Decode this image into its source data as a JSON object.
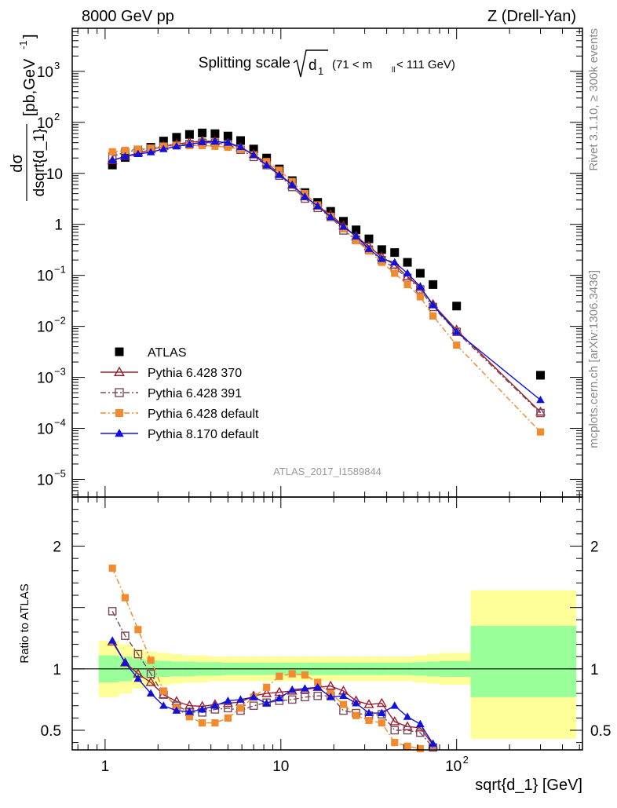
{
  "header": {
    "left": "8000 GeV pp",
    "right": "Z (Drell-Yan)"
  },
  "side_labels": {
    "rivet": "Rivet 3.1.10, ≥ 300k events",
    "mcplots": "mcplots.cern.ch [arXiv:1306.3436]"
  },
  "chart_data": [
    {
      "type": "scatter",
      "title_parts": {
        "main": "Splitting scale",
        "sqrt_arg": "d",
        "sqrt_sub": "1",
        "range_open": "(71 < m",
        "range_sub": "ll",
        "range_close": " < 111 GeV)"
      },
      "ylabel_parts": {
        "num": "dσ",
        "den": "dsqrt{d_1}",
        "units": "[pb,GeV",
        "units_exp": "-1",
        "units_close": "]"
      },
      "xscale": "log",
      "yscale": "log",
      "xlim": [
        0.65,
        520
      ],
      "ylim": [
        4.5e-06,
        7000
      ],
      "yticks": [
        {
          "value": 1e-05,
          "base": "10",
          "exp": "−5"
        },
        {
          "value": 0.0001,
          "base": "10",
          "exp": "−4"
        },
        {
          "value": 0.001,
          "base": "10",
          "exp": "−3"
        },
        {
          "value": 0.01,
          "base": "10",
          "exp": "−2"
        },
        {
          "value": 0.1,
          "base": "10",
          "exp": "−1"
        },
        {
          "value": 1,
          "base": "1",
          "exp": ""
        },
        {
          "value": 10,
          "base": "10",
          "exp": ""
        },
        {
          "value": 100,
          "base": "10",
          "exp": "2"
        },
        {
          "value": 1000,
          "base": "10",
          "exp": "3"
        }
      ],
      "watermark": "ATLAS_2017_I1589844",
      "legend_position": "bottom-left",
      "x": [
        1.1,
        1.3,
        1.54,
        1.82,
        2.15,
        2.55,
        3.02,
        3.57,
        4.22,
        5.0,
        5.9,
        7.0,
        8.3,
        9.8,
        11.6,
        13.7,
        16.2,
        19.2,
        22.7,
        26.8,
        31.7,
        37.5,
        44.4,
        52.5,
        62.1,
        73.4,
        100,
        300
      ],
      "series": [
        {
          "name": "ATLAS",
          "color": "#000000",
          "marker": "square",
          "line": "none",
          "values": [
            14.6,
            20.5,
            26,
            32.5,
            43,
            51,
            58,
            62,
            60,
            54,
            44,
            30,
            20,
            12.2,
            7.2,
            4.2,
            2.7,
            1.8,
            1.15,
            0.78,
            0.52,
            0.32,
            0.28,
            0.18,
            0.11,
            0.066,
            0.025,
            0.0011
          ]
        },
        {
          "name": "Pythia 6.428 370",
          "color": "#9a1e2c",
          "marker": "triangle-open",
          "line": "solid",
          "values": [
            17.8,
            21.5,
            25,
            29,
            34,
            37.5,
            40.5,
            43,
            42.5,
            39,
            32,
            23.5,
            16,
            9.8,
            5.9,
            3.5,
            2.3,
            1.55,
            0.94,
            0.58,
            0.37,
            0.23,
            0.16,
            0.095,
            0.058,
            0.027,
            0.0085,
            0.00021
          ]
        },
        {
          "name": "Pythia 6.428 391",
          "color": "#7a4a5a",
          "marker": "square-open",
          "line": "dashdot",
          "values": [
            21.5,
            26,
            29,
            31,
            34,
            35.5,
            37.5,
            40,
            40,
            36.5,
            29,
            21,
            14.5,
            9,
            5.4,
            3.2,
            2.1,
            1.4,
            0.76,
            0.5,
            0.32,
            0.2,
            0.14,
            0.09,
            0.053,
            0.024,
            0.0078,
            0.0002
          ]
        },
        {
          "name": "Pythia 6.428 default",
          "color": "#f28a30",
          "marker": "square-filled",
          "line": "dashdot",
          "values": [
            26.5,
            28.3,
            29.6,
            30.7,
            33.5,
            35,
            35,
            35,
            34,
            32.5,
            30,
            23,
            17,
            11.5,
            6.9,
            4.0,
            2.4,
            1.43,
            0.82,
            0.48,
            0.3,
            0.18,
            0.11,
            0.066,
            0.038,
            0.016,
            0.0043,
            8.5e-05
          ]
        },
        {
          "name": "Pythia 8.170 default",
          "color": "#1111dd",
          "marker": "triangle-filled",
          "line": "solid",
          "values": [
            18,
            21.5,
            24,
            26,
            30,
            34,
            37,
            41,
            42,
            40,
            33,
            23,
            14.5,
            9.3,
            6,
            3.5,
            2.3,
            1.4,
            0.9,
            0.58,
            0.33,
            0.21,
            0.18,
            0.11,
            0.06,
            0.026,
            0.0078,
            0.00036
          ]
        }
      ]
    },
    {
      "type": "scatter",
      "ylabel": "Ratio to ATLAS",
      "xlabel": "sqrt{d_1} [GeV]",
      "xscale": "log",
      "yscale": "linear",
      "xlim": [
        0.65,
        520
      ],
      "ylim": [
        0.34,
        2.4
      ],
      "reference_line": 1,
      "yticks": [
        0.5,
        1,
        2
      ],
      "ytick_labels": [
        "0.5",
        "1",
        "2"
      ],
      "xticks": [
        1,
        10,
        100
      ],
      "xtick_labels": [
        {
          "base": "1",
          "exp": ""
        },
        {
          "base": "10",
          "exp": ""
        },
        {
          "base": "10",
          "exp": "2"
        }
      ],
      "bands": {
        "edges": [
          0.92,
          1.2,
          1.42,
          1.68,
          1.99,
          2.35,
          2.78,
          3.29,
          3.89,
          4.6,
          5.44,
          6.43,
          7.61,
          9.0,
          10.6,
          12.6,
          14.9,
          17.6,
          20.8,
          24.6,
          29.1,
          34.4,
          40.7,
          48.1,
          56.9,
          67.3,
          79.6,
          120,
          480
        ],
        "yellow_lo": [
          0.77,
          0.8,
          0.84,
          0.86,
          0.87,
          0.88,
          0.89,
          0.89,
          0.9,
          0.9,
          0.9,
          0.9,
          0.9,
          0.9,
          0.9,
          0.9,
          0.9,
          0.9,
          0.9,
          0.9,
          0.9,
          0.9,
          0.9,
          0.9,
          0.89,
          0.88,
          0.87,
          0.43
        ],
        "yellow_hi": [
          1.23,
          1.2,
          1.16,
          1.14,
          1.13,
          1.12,
          1.11,
          1.11,
          1.1,
          1.1,
          1.1,
          1.1,
          1.1,
          1.1,
          1.1,
          1.1,
          1.1,
          1.1,
          1.1,
          1.1,
          1.1,
          1.1,
          1.1,
          1.1,
          1.11,
          1.12,
          1.13,
          1.64
        ],
        "green_lo": [
          0.89,
          0.9,
          0.92,
          0.93,
          0.935,
          0.94,
          0.94,
          0.945,
          0.945,
          0.95,
          0.95,
          0.95,
          0.95,
          0.95,
          0.95,
          0.95,
          0.95,
          0.95,
          0.95,
          0.95,
          0.95,
          0.95,
          0.95,
          0.95,
          0.945,
          0.94,
          0.935,
          0.77
        ],
        "green_hi": [
          1.11,
          1.1,
          1.08,
          1.07,
          1.065,
          1.06,
          1.06,
          1.055,
          1.055,
          1.05,
          1.05,
          1.05,
          1.05,
          1.05,
          1.05,
          1.05,
          1.05,
          1.05,
          1.05,
          1.05,
          1.05,
          1.05,
          1.05,
          1.05,
          1.055,
          1.06,
          1.065,
          1.35
        ]
      },
      "x": [
        1.1,
        1.3,
        1.54,
        1.82,
        2.15,
        2.55,
        3.02,
        3.57,
        4.22,
        5.0,
        5.9,
        7.0,
        8.3,
        9.8,
        11.6,
        13.7,
        16.2,
        19.2,
        22.7,
        26.8,
        31.7,
        37.5,
        44.4,
        52.5,
        62.1,
        73.4
      ],
      "series": [
        {
          "name": "Pythia 6.428 370",
          "color": "#9a1e2c",
          "marker": "triangle-open",
          "line": "solid",
          "values": [
            1.22,
            1.05,
            0.96,
            0.89,
            0.79,
            0.735,
            0.7,
            0.695,
            0.71,
            0.72,
            0.73,
            0.78,
            0.8,
            0.81,
            0.82,
            0.83,
            0.85,
            0.86,
            0.82,
            0.74,
            0.71,
            0.72,
            0.57,
            0.53,
            0.52,
            0.38
          ]
        },
        {
          "name": "Pythia 6.428 391",
          "color": "#7a4a5a",
          "marker": "square-open",
          "line": "dashdot",
          "values": [
            1.47,
            1.27,
            1.12,
            0.96,
            0.79,
            0.7,
            0.65,
            0.645,
            0.67,
            0.68,
            0.66,
            0.7,
            0.725,
            0.74,
            0.75,
            0.77,
            0.78,
            0.78,
            0.66,
            0.64,
            0.62,
            0.63,
            0.5,
            0.5,
            0.48,
            0.36
          ]
        },
        {
          "name": "Pythia 6.428 default",
          "color": "#f28a30",
          "marker": "square-filled",
          "line": "dashdot",
          "values": [
            1.82,
            1.58,
            1.32,
            1.07,
            0.82,
            0.68,
            0.61,
            0.56,
            0.56,
            0.6,
            0.68,
            0.77,
            0.85,
            0.94,
            0.96,
            0.95,
            0.89,
            0.8,
            0.71,
            0.62,
            0.58,
            0.56,
            0.4,
            0.37,
            0.35,
            0.24
          ]
        },
        {
          "name": "Pythia 8.170 default",
          "color": "#1111dd",
          "marker": "triangle-filled",
          "line": "solid",
          "values": [
            1.23,
            1.05,
            0.92,
            0.8,
            0.7,
            0.66,
            0.65,
            0.67,
            0.7,
            0.74,
            0.75,
            0.77,
            0.72,
            0.76,
            0.83,
            0.84,
            0.85,
            0.77,
            0.78,
            0.72,
            0.64,
            0.64,
            0.7,
            0.61,
            0.55,
            0.39
          ]
        }
      ]
    }
  ],
  "legend": [
    {
      "label": "ATLAS",
      "color": "#000000",
      "marker": "square",
      "line": "none"
    },
    {
      "label": "Pythia 6.428 370",
      "color": "#9a1e2c",
      "marker": "triangle-open",
      "line": "solid"
    },
    {
      "label": "Pythia 6.428 391",
      "color": "#7a4a5a",
      "marker": "square-open",
      "line": "dashdot"
    },
    {
      "label": "Pythia 6.428 default",
      "color": "#f28a30",
      "marker": "square-filled",
      "line": "dashdot"
    },
    {
      "label": "Pythia 8.170 default",
      "color": "#1111dd",
      "marker": "triangle-filled",
      "line": "solid"
    }
  ],
  "colors": {
    "band_yellow": "#ffff99",
    "band_green": "#99ff99",
    "frame": "#000000",
    "side_text": "#888888",
    "watermark": "#999999"
  }
}
